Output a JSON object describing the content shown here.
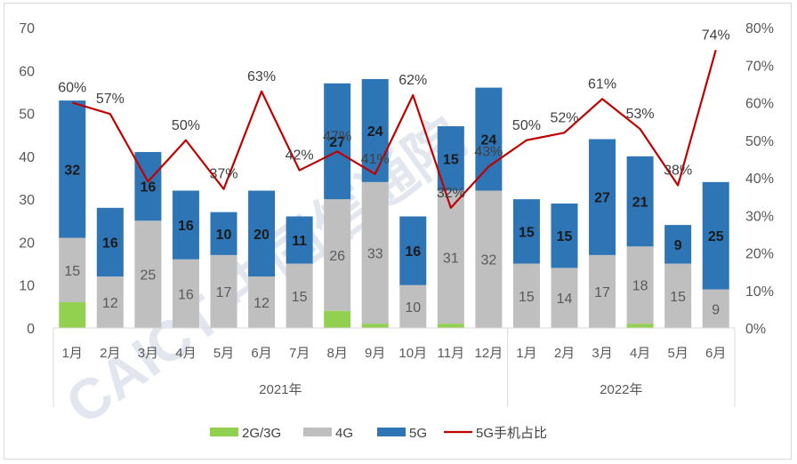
{
  "chart_data": {
    "type": "bar",
    "stacked": true,
    "categories": [
      "1月",
      "2月",
      "3月",
      "4月",
      "5月",
      "6月",
      "7月",
      "8月",
      "9月",
      "10月",
      "11月",
      "12月",
      "1月",
      "2月",
      "3月",
      "4月",
      "5月",
      "6月"
    ],
    "year_groups": [
      {
        "label": "2021年",
        "count": 12
      },
      {
        "label": "2022年",
        "count": 6
      }
    ],
    "series": [
      {
        "name": "2G/3G",
        "color": "#92d050",
        "values": [
          6,
          0,
          0,
          0,
          0,
          0,
          0,
          4,
          1,
          0,
          1,
          0,
          0,
          0,
          0,
          1,
          0,
          0
        ]
      },
      {
        "name": "4G",
        "color": "#bfbfbf",
        "values": [
          15,
          12,
          25,
          16,
          17,
          12,
          15,
          26,
          33,
          10,
          31,
          32,
          15,
          14,
          17,
          18,
          15,
          9
        ]
      },
      {
        "name": "5G",
        "color": "#2e75b6",
        "values": [
          32,
          16,
          16,
          16,
          10,
          20,
          11,
          27,
          24,
          16,
          15,
          24,
          15,
          15,
          27,
          21,
          9,
          25
        ]
      }
    ],
    "line_series": {
      "name": "5G手机占比",
      "color": "#c00000",
      "axis": "right",
      "values": [
        60,
        57,
        39,
        50,
        37,
        63,
        42,
        47,
        41,
        62,
        32,
        43,
        50,
        52,
        61,
        53,
        38,
        74
      ],
      "labels": [
        "60%",
        "57%",
        "",
        "50%",
        "37%",
        "63%",
        "42%",
        "47%",
        "41%",
        "62%",
        "32%",
        "43%",
        "50%",
        "52%",
        "61%",
        "53%",
        "38%",
        "74%"
      ]
    },
    "y_left": {
      "min": 0,
      "max": 70,
      "ticks": [
        "0",
        "10",
        "20",
        "30",
        "40",
        "50",
        "60",
        "70"
      ]
    },
    "y_right": {
      "min": 0,
      "max": 80,
      "ticks": [
        "0%",
        "10%",
        "20%",
        "30%",
        "40%",
        "50%",
        "60%",
        "70%",
        "80%"
      ]
    },
    "legend_position": "bottom",
    "grid": false
  },
  "legend": {
    "items": [
      {
        "label": "2G/3G",
        "color": "#92d050",
        "kind": "box"
      },
      {
        "label": "4G",
        "color": "#bfbfbf",
        "kind": "box"
      },
      {
        "label": "5G",
        "color": "#2e75b6",
        "kind": "box"
      },
      {
        "label": "5G手机占比",
        "color": "#c00000",
        "kind": "line"
      }
    ]
  },
  "watermark": {
    "text": "CAICT 中国信通院"
  }
}
